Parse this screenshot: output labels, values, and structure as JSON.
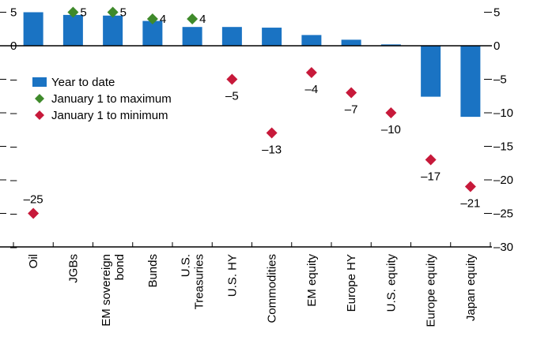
{
  "chart_data": {
    "type": "bar",
    "categories": [
      [
        "Oil"
      ],
      [
        "JGBs"
      ],
      [
        "EM sovereign",
        "bond"
      ],
      [
        "Bunds"
      ],
      [
        "U.S.",
        "Treasuries"
      ],
      [
        "U.S. HY"
      ],
      [
        "Commodities"
      ],
      [
        "EM equity"
      ],
      [
        "Europe HY"
      ],
      [
        "U.S. equity"
      ],
      [
        "Europe equity"
      ],
      [
        "Japan equity"
      ]
    ],
    "series": [
      {
        "name": "Year to date",
        "mark": "bar",
        "color": "#1a73c3",
        "values": [
          5.0,
          4.6,
          4.5,
          3.7,
          2.8,
          2.8,
          2.7,
          1.6,
          0.9,
          0.2,
          -7.6,
          -10.6
        ]
      },
      {
        "name": "January 1 to maximum",
        "mark": "diamond",
        "color": "#3f8a2b",
        "values": [
          null,
          5,
          5,
          4,
          4,
          null,
          null,
          null,
          null,
          null,
          null,
          null
        ],
        "labels": [
          "",
          "5",
          "5",
          "4",
          "4",
          "",
          "",
          "",
          "",
          "",
          "",
          ""
        ]
      },
      {
        "name": "January 1 to minimum",
        "mark": "diamond",
        "color": "#c7193a",
        "values": [
          -25,
          null,
          null,
          null,
          null,
          -5,
          -13,
          -4,
          -7,
          -10,
          -17,
          -21
        ],
        "labels": [
          "–25",
          "",
          "",
          "",
          "",
          "–5",
          "–13",
          "–4",
          "–7",
          "–10",
          "–17",
          "–21"
        ]
      }
    ],
    "ylim": [
      -30,
      6
    ],
    "yticks": [
      5,
      0,
      -5,
      -10,
      -15,
      -20,
      -25,
      -30
    ],
    "ytick_labels_right": [
      "5",
      "0",
      "–5",
      "–10",
      "–15",
      "–20",
      "–25",
      "–30"
    ],
    "ytick_labels_left": [
      "5",
      "0",
      "–",
      "–",
      "–",
      "–",
      "–",
      "–"
    ],
    "legend_position": "left",
    "grid": false,
    "title": "",
    "xlabel": "",
    "ylabel": ""
  }
}
